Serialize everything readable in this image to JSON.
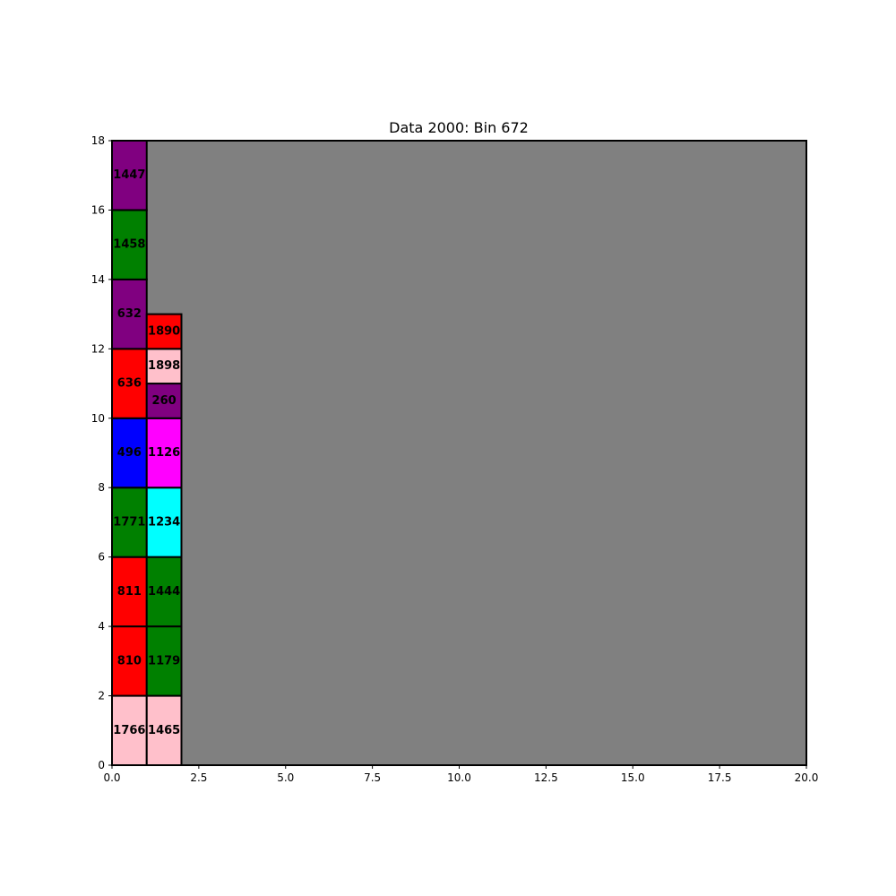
{
  "chart_data": {
    "type": "rectangle-packing",
    "title": "Data 2000: Bin 672",
    "xlabel": "",
    "ylabel": "",
    "xlim": [
      0,
      20
    ],
    "ylim": [
      0,
      18
    ],
    "xticks": [
      "0.0",
      "2.5",
      "5.0",
      "7.5",
      "10.0",
      "12.5",
      "15.0",
      "17.5",
      "20.0"
    ],
    "xtick_values": [
      0,
      2.5,
      5,
      7.5,
      10,
      12.5,
      15,
      17.5,
      20
    ],
    "yticks": [
      "0",
      "2",
      "4",
      "6",
      "8",
      "10",
      "12",
      "14",
      "16",
      "18"
    ],
    "ytick_values": [
      0,
      2,
      4,
      6,
      8,
      10,
      12,
      14,
      16,
      18
    ],
    "grid": false,
    "background_color": "#808080",
    "items": [
      {
        "label": "1766",
        "x": 0,
        "y": 0,
        "w": 1,
        "h": 2,
        "color": "#ffc0cb"
      },
      {
        "label": "810",
        "x": 0,
        "y": 2,
        "w": 1,
        "h": 2,
        "color": "#ff0000"
      },
      {
        "label": "811",
        "x": 0,
        "y": 4,
        "w": 1,
        "h": 2,
        "color": "#ff0000"
      },
      {
        "label": "1771",
        "x": 0,
        "y": 6,
        "w": 1,
        "h": 2,
        "color": "#008000"
      },
      {
        "label": "496",
        "x": 0,
        "y": 8,
        "w": 1,
        "h": 2,
        "color": "#0000ff"
      },
      {
        "label": "636",
        "x": 0,
        "y": 10,
        "w": 1,
        "h": 2,
        "color": "#ff0000"
      },
      {
        "label": "632",
        "x": 0,
        "y": 12,
        "w": 1,
        "h": 2,
        "color": "#800080"
      },
      {
        "label": "1458",
        "x": 0,
        "y": 14,
        "w": 1,
        "h": 2,
        "color": "#008000"
      },
      {
        "label": "1447",
        "x": 0,
        "y": 16,
        "w": 1,
        "h": 2,
        "color": "#800080"
      },
      {
        "label": "1465",
        "x": 1,
        "y": 0,
        "w": 1,
        "h": 2,
        "color": "#ffc0cb"
      },
      {
        "label": "1179",
        "x": 1,
        "y": 2,
        "w": 1,
        "h": 2,
        "color": "#008000"
      },
      {
        "label": "1444",
        "x": 1,
        "y": 4,
        "w": 1,
        "h": 2,
        "color": "#008000"
      },
      {
        "label": "1234",
        "x": 1,
        "y": 6,
        "w": 1,
        "h": 2,
        "color": "#00ffff"
      },
      {
        "label": "1126",
        "x": 1,
        "y": 8,
        "w": 1,
        "h": 2,
        "color": "#ff00ff"
      },
      {
        "label": "260",
        "x": 1,
        "y": 10,
        "w": 1,
        "h": 1,
        "color": "#800080"
      },
      {
        "label": "1898",
        "x": 1,
        "y": 11,
        "w": 1,
        "h": 1,
        "color": "#ffc0cb"
      },
      {
        "label": "1890",
        "x": 1,
        "y": 12,
        "w": 1,
        "h": 1,
        "color": "#ff0000"
      }
    ]
  }
}
